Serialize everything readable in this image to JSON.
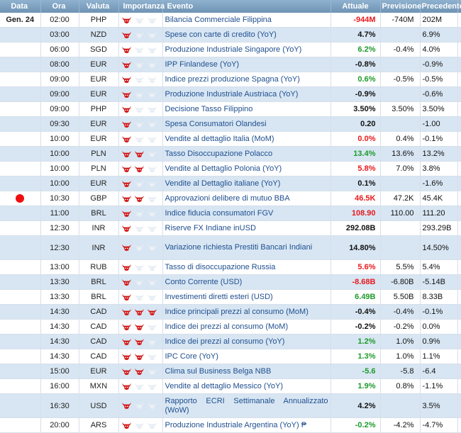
{
  "headers": {
    "date": "Data",
    "time": "Ora",
    "currency": "Valuta",
    "importance": "Importanza",
    "event": "Evento",
    "actual": "Attuale",
    "forecast": "Previsione",
    "previous": "Precedente"
  },
  "colors": {
    "bull_active": "#d11a1a",
    "bull_inactive": "#e6ecf3",
    "negative": "#e8191c",
    "positive": "#1d9a2b",
    "header": "#7fa3c2",
    "row_alt": "#d8e6f3"
  },
  "rows": [
    {
      "date": "Gen. 24",
      "time": "02:00",
      "currency": "PHP",
      "importance": 1,
      "event": "Bilancia Commerciale Filippina",
      "actual": "-944M",
      "actual_color": "red",
      "forecast": "-740M",
      "previous": "202M",
      "diamond": false,
      "dot": false
    },
    {
      "date": "",
      "time": "03:00",
      "currency": "NZD",
      "importance": 1,
      "event": "Spese con carte di credito (YoY)",
      "actual": "4.7%",
      "actual_color": "black",
      "forecast": "",
      "previous": "6.9%",
      "diamond": false,
      "dot": false
    },
    {
      "date": "",
      "time": "06:00",
      "currency": "SGD",
      "importance": 1,
      "event": "Produzione Industriale Singapore (YoY)",
      "actual": "6.2%",
      "actual_color": "green",
      "forecast": "-0.4%",
      "previous": "4.0%",
      "diamond": false,
      "dot": false
    },
    {
      "date": "",
      "time": "08:00",
      "currency": "EUR",
      "importance": 1,
      "event": "IPP Finlandese (YoY)",
      "actual": "-0.8%",
      "actual_color": "black",
      "forecast": "",
      "previous": "-0.9%",
      "diamond": false,
      "dot": false
    },
    {
      "date": "",
      "time": "09:00",
      "currency": "EUR",
      "importance": 1,
      "event": "Indice prezzi produzione Spagna (YoY)",
      "actual": "0.6%",
      "actual_color": "green",
      "forecast": "-0.5%",
      "previous": "-0.5%",
      "diamond": true,
      "dot": false
    },
    {
      "date": "",
      "time": "09:00",
      "currency": "EUR",
      "importance": 1,
      "event": "Produzione Industriale Austriaca (YoY)",
      "actual": "-0.9%",
      "actual_color": "black",
      "forecast": "",
      "previous": "-0.6%",
      "diamond": false,
      "dot": false
    },
    {
      "date": "",
      "time": "09:00",
      "currency": "PHP",
      "importance": 1,
      "event": "Decisione Tasso Filippino",
      "actual": "3.50%",
      "actual_color": "black",
      "forecast": "3.50%",
      "previous": "3.50%",
      "diamond": false,
      "dot": false
    },
    {
      "date": "",
      "time": "09:30",
      "currency": "EUR",
      "importance": 1,
      "event": "Spesa Consumatori Olandesi",
      "actual": "0.20",
      "actual_color": "black",
      "forecast": "",
      "previous": "-1.00",
      "diamond": true,
      "dot": false
    },
    {
      "date": "",
      "time": "10:00",
      "currency": "EUR",
      "importance": 1,
      "event": "Vendite al dettaglio Italia (MoM)",
      "actual": "0.0%",
      "actual_color": "red",
      "forecast": "0.4%",
      "previous": "-0.1%",
      "diamond": false,
      "dot": false
    },
    {
      "date": "",
      "time": "10:00",
      "currency": "PLN",
      "importance": 2,
      "event": "Tasso Disoccupazione Polacco",
      "actual": "13.4%",
      "actual_color": "green",
      "forecast": "13.6%",
      "previous": "13.2%",
      "diamond": false,
      "dot": false
    },
    {
      "date": "",
      "time": "10:00",
      "currency": "PLN",
      "importance": 2,
      "event": "Vendite al Dettaglio Polonia (YoY)",
      "actual": "5.8%",
      "actual_color": "red",
      "forecast": "7.0%",
      "previous": "3.8%",
      "diamond": false,
      "dot": false
    },
    {
      "date": "",
      "time": "10:00",
      "currency": "EUR",
      "importance": 1,
      "event": "Vendite al Dettaglio italiane (YoY)",
      "actual": "0.1%",
      "actual_color": "black",
      "forecast": "",
      "previous": "-1.6%",
      "diamond": false,
      "dot": false
    },
    {
      "date": "",
      "time": "10:30",
      "currency": "GBP",
      "importance": 2,
      "event": "Approvazioni delibere di mutuo BBA",
      "actual": "46.5K",
      "actual_color": "red",
      "forecast": "47.2K",
      "previous": "45.4K",
      "diamond": true,
      "dot": true
    },
    {
      "date": "",
      "time": "11:00",
      "currency": "BRL",
      "importance": 1,
      "event": "Indice fiducia consumatori FGV",
      "actual": "108.90",
      "actual_color": "red",
      "forecast": "110.00",
      "previous": "111.20",
      "diamond": true,
      "dot": false
    },
    {
      "date": "",
      "time": "12:30",
      "currency": "INR",
      "importance": 1,
      "event": "Riserve FX Indiane inUSD",
      "actual": "292.08B",
      "actual_color": "black",
      "forecast": "",
      "previous": "293.29B",
      "diamond": false,
      "dot": false
    },
    {
      "date": "",
      "time": "12:30",
      "currency": "INR",
      "importance": 1,
      "event": "Variazione richiesta Prestiti Bancari Indiani",
      "actual": "14.80%",
      "actual_color": "black",
      "forecast": "",
      "previous": "14.50%",
      "diamond": false,
      "dot": false
    },
    {
      "date": "",
      "time": "13:00",
      "currency": "RUB",
      "importance": 1,
      "event": "Tasso di disoccupazione Russia",
      "actual": "5.6%",
      "actual_color": "red",
      "forecast": "5.5%",
      "previous": "5.4%",
      "diamond": false,
      "dot": false
    },
    {
      "date": "",
      "time": "13:30",
      "currency": "BRL",
      "importance": 1,
      "event": "Conto Corrente (USD)",
      "actual": "-8.68B",
      "actual_color": "red",
      "forecast": "-6.80B",
      "previous": "-5.14B",
      "diamond": false,
      "dot": false
    },
    {
      "date": "",
      "time": "13:30",
      "currency": "BRL",
      "importance": 1,
      "event": "Investimenti diretti esteri (USD)",
      "actual": "6.49B",
      "actual_color": "green",
      "forecast": "5.50B",
      "previous": "8.33B",
      "diamond": false,
      "dot": false
    },
    {
      "date": "",
      "time": "14:30",
      "currency": "CAD",
      "importance": 3,
      "event": "Indice principali prezzi al consumo (MoM)",
      "actual": "-0.4%",
      "actual_color": "black",
      "forecast": "-0.4%",
      "previous": "-0.1%",
      "diamond": false,
      "dot": false
    },
    {
      "date": "",
      "time": "14:30",
      "currency": "CAD",
      "importance": 2,
      "event": "Indice dei prezzi al consumo (MoM)",
      "actual": "-0.2%",
      "actual_color": "black",
      "forecast": "-0.2%",
      "previous": "0.0%",
      "diamond": false,
      "dot": false
    },
    {
      "date": "",
      "time": "14:30",
      "currency": "CAD",
      "importance": 2,
      "event": "Indice dei prezzi al consumo (YoY)",
      "actual": "1.2%",
      "actual_color": "green",
      "forecast": "1.0%",
      "previous": "0.9%",
      "diamond": false,
      "dot": false
    },
    {
      "date": "",
      "time": "14:30",
      "currency": "CAD",
      "importance": 2,
      "event": "IPC Core (YoY)",
      "actual": "1.3%",
      "actual_color": "green",
      "forecast": "1.0%",
      "previous": "1.1%",
      "diamond": false,
      "dot": false
    },
    {
      "date": "",
      "time": "15:00",
      "currency": "EUR",
      "importance": 2,
      "event": "Clima sul Business Belga NBB",
      "actual": "-5.6",
      "actual_color": "green",
      "forecast": "-5.8",
      "previous": "-6.4",
      "diamond": false,
      "dot": false
    },
    {
      "date": "",
      "time": "16:00",
      "currency": "MXN",
      "importance": 1,
      "event": "Vendite al dettaglio Messico (YoY)",
      "actual": "1.9%",
      "actual_color": "green",
      "forecast": "0.8%",
      "previous": "-1.1%",
      "diamond": false,
      "dot": false
    },
    {
      "date": "",
      "time": "16:30",
      "currency": "USD",
      "importance": 1,
      "event": "Rapporto ECRI Settimanale Annualizzato (WoW)",
      "actual": "4.2%",
      "actual_color": "black",
      "forecast": "",
      "previous": "3.5%",
      "diamond": true,
      "dot": false
    },
    {
      "date": "",
      "time": "20:00",
      "currency": "ARS",
      "importance": 1,
      "event": "Produzione Industriale Argentina (YoY) ₱",
      "actual": "-0.2%",
      "actual_color": "green",
      "forecast": "-4.2%",
      "previous": "-4.7%",
      "diamond": false,
      "dot": false
    }
  ]
}
